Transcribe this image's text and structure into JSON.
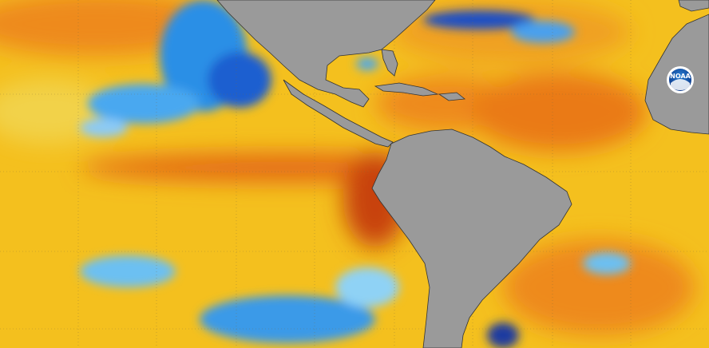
{
  "logo": {
    "text": "NOAA"
  }
}
